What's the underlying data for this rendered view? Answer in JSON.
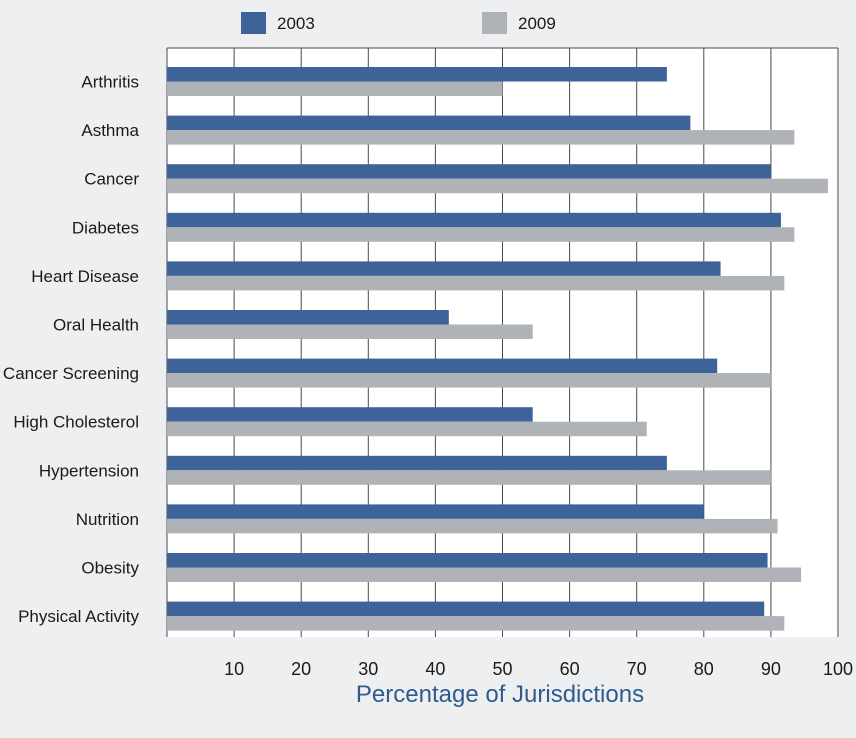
{
  "chart_data": {
    "type": "bar",
    "orientation": "horizontal",
    "title": "",
    "xlabel": "Percentage of Jurisdictions",
    "ylabel": "",
    "xlim": [
      0,
      100
    ],
    "xticks": [
      10,
      20,
      30,
      40,
      50,
      60,
      70,
      80,
      90,
      100
    ],
    "grid": true,
    "legend_position": "top",
    "categories": [
      "Arthritis",
      "Asthma",
      "Cancer",
      "Diabetes",
      "Heart Disease",
      "Oral Health",
      "Cancer Screening",
      "High Cholesterol",
      "Hypertension",
      "Nutrition",
      "Obesity",
      "Physical Activity"
    ],
    "series": [
      {
        "name": "2003",
        "color": "#3d6399",
        "values": [
          74.5,
          78.0,
          90.0,
          91.5,
          82.5,
          42.0,
          82.0,
          54.5,
          74.5,
          80.0,
          89.5,
          89.0
        ]
      },
      {
        "name": "2009",
        "color": "#afb2b6",
        "values": [
          50.0,
          93.5,
          98.5,
          93.5,
          92.0,
          54.5,
          90.0,
          71.5,
          90.0,
          91.0,
          94.5,
          92.0
        ]
      }
    ],
    "axis_title_color": "#2e5c8e"
  }
}
